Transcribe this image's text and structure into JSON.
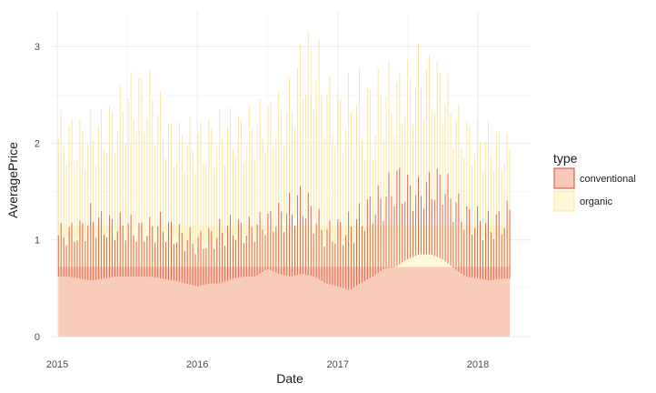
{
  "chart_data": {
    "type": "area",
    "xlabel": "Date",
    "ylabel": "AveragePrice",
    "xlim": [
      "2015-01-01",
      "2018-03-25"
    ],
    "ylim": [
      0,
      3.35
    ],
    "x_ticks": [
      "2015",
      "2016",
      "2017",
      "2018"
    ],
    "y_ticks": [
      0,
      1,
      2,
      3
    ],
    "grid": true,
    "legend": {
      "title": "type",
      "position": "right"
    },
    "series": [
      {
        "name": "conventional",
        "color": "#E2694A",
        "fill": "#F8C8B8",
        "points": [
          {
            "x": "2015-01-04",
            "min": 0.62,
            "max": 1.17
          },
          {
            "x": "2015-02-01",
            "min": 0.62,
            "max": 1.2
          },
          {
            "x": "2015-03-01",
            "min": 0.6,
            "max": 1.22
          },
          {
            "x": "2015-04-01",
            "min": 0.58,
            "max": 1.4
          },
          {
            "x": "2015-05-01",
            "min": 0.6,
            "max": 1.3
          },
          {
            "x": "2015-06-01",
            "min": 0.62,
            "max": 1.28
          },
          {
            "x": "2015-07-01",
            "min": 0.62,
            "max": 1.3
          },
          {
            "x": "2015-08-01",
            "min": 0.62,
            "max": 1.22
          },
          {
            "x": "2015-09-01",
            "min": 0.62,
            "max": 1.25
          },
          {
            "x": "2015-10-01",
            "min": 0.6,
            "max": 1.3
          },
          {
            "x": "2015-11-01",
            "min": 0.58,
            "max": 1.2
          },
          {
            "x": "2015-12-01",
            "min": 0.55,
            "max": 1.15
          },
          {
            "x": "2016-01-01",
            "min": 0.52,
            "max": 1.1
          },
          {
            "x": "2016-02-01",
            "min": 0.55,
            "max": 1.15
          },
          {
            "x": "2016-03-01",
            "min": 0.55,
            "max": 1.22
          },
          {
            "x": "2016-04-01",
            "min": 0.6,
            "max": 1.28
          },
          {
            "x": "2016-05-01",
            "min": 0.62,
            "max": 1.22
          },
          {
            "x": "2016-06-01",
            "min": 0.62,
            "max": 1.28
          },
          {
            "x": "2016-07-01",
            "min": 0.7,
            "max": 1.32
          },
          {
            "x": "2016-08-01",
            "min": 0.65,
            "max": 1.4
          },
          {
            "x": "2016-09-01",
            "min": 0.62,
            "max": 1.5
          },
          {
            "x": "2016-10-01",
            "min": 0.65,
            "max": 1.62
          },
          {
            "x": "2016-11-01",
            "min": 0.62,
            "max": 1.4
          },
          {
            "x": "2016-12-01",
            "min": 0.55,
            "max": 1.2
          },
          {
            "x": "2017-01-01",
            "min": 0.52,
            "max": 1.25
          },
          {
            "x": "2017-02-01",
            "min": 0.48,
            "max": 1.3
          },
          {
            "x": "2017-03-01",
            "min": 0.55,
            "max": 1.4
          },
          {
            "x": "2017-04-01",
            "min": 0.62,
            "max": 1.55
          },
          {
            "x": "2017-05-01",
            "min": 0.7,
            "max": 1.6
          },
          {
            "x": "2017-06-01",
            "min": 0.72,
            "max": 1.85
          },
          {
            "x": "2017-07-01",
            "min": 0.8,
            "max": 1.7
          },
          {
            "x": "2017-08-01",
            "min": 0.85,
            "max": 1.65
          },
          {
            "x": "2017-09-01",
            "min": 0.85,
            "max": 1.75
          },
          {
            "x": "2017-10-01",
            "min": 0.8,
            "max": 1.8
          },
          {
            "x": "2017-11-01",
            "min": 0.7,
            "max": 1.55
          },
          {
            "x": "2017-12-01",
            "min": 0.62,
            "max": 1.4
          },
          {
            "x": "2018-01-01",
            "min": 0.6,
            "max": 1.35
          },
          {
            "x": "2018-02-01",
            "min": 0.58,
            "max": 1.3
          },
          {
            "x": "2018-03-01",
            "min": 0.6,
            "max": 1.35
          },
          {
            "x": "2018-03-25",
            "min": 0.6,
            "max": 1.45
          }
        ]
      },
      {
        "name": "organic",
        "color": "#F8E7A1",
        "fill": "#FFF7D8",
        "points": [
          {
            "x": "2015-01-04",
            "min": 1.0,
            "max": 2.35
          },
          {
            "x": "2015-02-01",
            "min": 1.05,
            "max": 2.32
          },
          {
            "x": "2015-03-01",
            "min": 1.0,
            "max": 2.28
          },
          {
            "x": "2015-04-01",
            "min": 1.0,
            "max": 2.35
          },
          {
            "x": "2015-05-01",
            "min": 1.05,
            "max": 2.4
          },
          {
            "x": "2015-06-01",
            "min": 1.1,
            "max": 2.5
          },
          {
            "x": "2015-07-01",
            "min": 1.1,
            "max": 2.75
          },
          {
            "x": "2015-08-01",
            "min": 1.15,
            "max": 2.8
          },
          {
            "x": "2015-09-01",
            "min": 1.15,
            "max": 2.78
          },
          {
            "x": "2015-10-01",
            "min": 1.1,
            "max": 2.5
          },
          {
            "x": "2015-11-01",
            "min": 1.05,
            "max": 2.2
          },
          {
            "x": "2015-12-01",
            "min": 1.0,
            "max": 2.3
          },
          {
            "x": "2016-01-01",
            "min": 0.95,
            "max": 2.25
          },
          {
            "x": "2016-02-01",
            "min": 1.0,
            "max": 2.3
          },
          {
            "x": "2016-03-01",
            "min": 1.0,
            "max": 2.35
          },
          {
            "x": "2016-04-01",
            "min": 1.05,
            "max": 2.4
          },
          {
            "x": "2016-05-01",
            "min": 1.05,
            "max": 2.35
          },
          {
            "x": "2016-06-01",
            "min": 1.1,
            "max": 2.45
          },
          {
            "x": "2016-07-01",
            "min": 1.1,
            "max": 2.5
          },
          {
            "x": "2016-08-01",
            "min": 1.15,
            "max": 2.55
          },
          {
            "x": "2016-09-01",
            "min": 1.2,
            "max": 2.7
          },
          {
            "x": "2016-10-01",
            "min": 1.25,
            "max": 3.2
          },
          {
            "x": "2016-11-01",
            "min": 1.2,
            "max": 3.25
          },
          {
            "x": "2016-12-01",
            "min": 1.0,
            "max": 2.8
          },
          {
            "x": "2017-01-01",
            "min": 0.9,
            "max": 2.6
          },
          {
            "x": "2017-02-01",
            "min": 0.8,
            "max": 2.75
          },
          {
            "x": "2017-03-01",
            "min": 0.45,
            "max": 2.8
          },
          {
            "x": "2017-04-01",
            "min": 0.55,
            "max": 2.7
          },
          {
            "x": "2017-05-01",
            "min": 1.0,
            "max": 2.9
          },
          {
            "x": "2017-06-01",
            "min": 1.1,
            "max": 2.8
          },
          {
            "x": "2017-07-01",
            "min": 1.2,
            "max": 2.9
          },
          {
            "x": "2017-08-01",
            "min": 1.25,
            "max": 3.05
          },
          {
            "x": "2017-09-01",
            "min": 1.3,
            "max": 2.95
          },
          {
            "x": "2017-10-01",
            "min": 1.3,
            "max": 2.9
          },
          {
            "x": "2017-11-01",
            "min": 1.2,
            "max": 2.5
          },
          {
            "x": "2017-12-01",
            "min": 1.1,
            "max": 2.3
          },
          {
            "x": "2018-01-01",
            "min": 1.05,
            "max": 2.25
          },
          {
            "x": "2018-02-01",
            "min": 1.0,
            "max": 2.25
          },
          {
            "x": "2018-03-01",
            "min": 1.05,
            "max": 2.2
          },
          {
            "x": "2018-03-25",
            "min": 1.05,
            "max": 2.1
          }
        ]
      }
    ]
  }
}
